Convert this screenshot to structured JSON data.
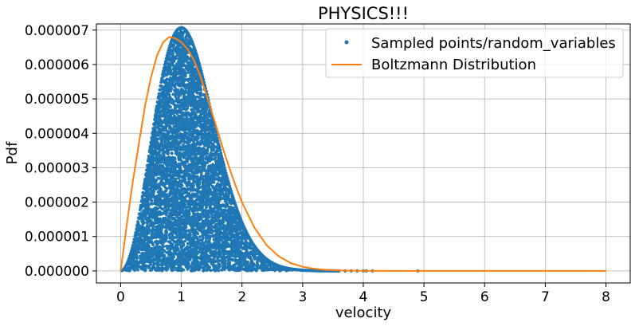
{
  "chart_data": {
    "type": "scatter",
    "title": "PHYSICS!!!",
    "xlabel": "velocity",
    "ylabel": "Pdf",
    "xlim": [
      -0.4,
      8.4
    ],
    "ylim": [
      -3.5e-07,
      7.18e-06
    ],
    "x_ticks": [
      0,
      1,
      2,
      3,
      4,
      5,
      6,
      7,
      8
    ],
    "x_tick_labels": [
      "0",
      "1",
      "2",
      "3",
      "4",
      "5",
      "6",
      "7",
      "8"
    ],
    "y_ticks": [
      0,
      1e-06,
      2e-06,
      3e-06,
      4e-06,
      5e-06,
      6e-06,
      7e-06
    ],
    "y_tick_labels": [
      "0.000000",
      "0.000001",
      "0.000002",
      "0.000003",
      "0.000004",
      "0.000005",
      "0.000006",
      "0.000007"
    ],
    "grid": true,
    "legend_position": "top-right",
    "series": [
      {
        "name": "Sampled points/random_variables",
        "kind": "scatter",
        "color": "#1f77b4",
        "description_fill": "points fill area under curve, density decreasing with velocity",
        "sparse_tail_x": [
          3.6,
          3.7,
          3.8,
          3.9,
          4.0,
          4.05,
          4.15,
          4.9
        ]
      },
      {
        "name": "Boltzmann Distribution",
        "kind": "line",
        "color": "#ff7f0e",
        "x": [
          0,
          0.1,
          0.2,
          0.3,
          0.4,
          0.5,
          0.6,
          0.7,
          0.8,
          0.9,
          1.0,
          1.1,
          1.2,
          1.3,
          1.4,
          1.5,
          1.6,
          1.7,
          1.8,
          1.9,
          2.0,
          2.2,
          2.4,
          2.6,
          2.8,
          3.0,
          3.2,
          3.4,
          3.6,
          3.8,
          4.0,
          4.5,
          5,
          5.5,
          6,
          6.5,
          7,
          7.5,
          8
        ],
        "y": [
          0,
          1.34e-06,
          2.6e-06,
          3.7e-06,
          4.78e-06,
          5.63e-06,
          6.26e-06,
          6.65e-06,
          6.8e-06,
          6.76e-06,
          6.65e-06,
          6.45e-06,
          6.15e-06,
          5.73e-06,
          5.2e-06,
          4.63e-06,
          4.05e-06,
          3.48e-06,
          2.95e-06,
          2.45e-06,
          2e-06,
          1.27e-06,
          7.6e-07,
          4.3e-07,
          2.3e-07,
          1.2e-07,
          6e-08,
          3e-08,
          1.5e-08,
          7e-09,
          3e-09,
          5e-10,
          0.0,
          0.0,
          0.0,
          0.0,
          0.0,
          0.0,
          0.0
        ]
      }
    ]
  }
}
